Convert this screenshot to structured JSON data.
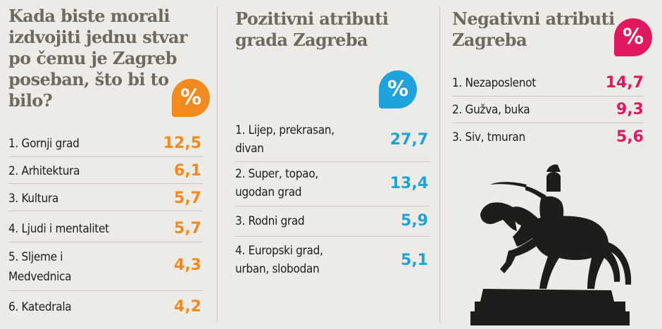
{
  "colors": {
    "orange": "#f38a1f",
    "blue": "#1ea3dc",
    "pink": "#e0185f",
    "title_grey": "#6e6a62"
  },
  "panels": [
    {
      "title_lines": [
        "Kada biste morali",
        "izdvojiti jednu stvar",
        "po čemu je Zagreb",
        "poseban, što bi to",
        "bilo?"
      ],
      "badge": "%",
      "rows": [
        {
          "label_lines": [
            "1. Gornji grad"
          ],
          "value": "12,5"
        },
        {
          "label_lines": [
            "2. Arhitektura"
          ],
          "value": "6,1"
        },
        {
          "label_lines": [
            "3. Kultura"
          ],
          "value": "5,7"
        },
        {
          "label_lines": [
            "4. Ljudi i mentalitet"
          ],
          "value": "5,7"
        },
        {
          "label_lines": [
            "5. Sljeme i",
            "Medvednica"
          ],
          "value": "4,3"
        },
        {
          "label_lines": [
            "6. Katedrala"
          ],
          "value": "4,2"
        }
      ]
    },
    {
      "title_lines": [
        "Pozitivni atributi",
        "grada Zagreba"
      ],
      "badge": "%",
      "rows": [
        {
          "label_lines": [
            "1. Lijep, prekrasan,",
            "divan"
          ],
          "value": "27,7"
        },
        {
          "label_lines": [
            "2. Super, topao,",
            "ugodan grad"
          ],
          "value": "13,4"
        },
        {
          "label_lines": [
            "3. Rodni grad"
          ],
          "value": "5,9"
        },
        {
          "label_lines": [
            "4. Europski grad,",
            "urban, slobodan"
          ],
          "value": "5,1"
        }
      ]
    },
    {
      "title_lines": [
        "Negativni atributi",
        "Zagreba"
      ],
      "badge": "%",
      "rows": [
        {
          "label_lines": [
            "1. Nezaposlenot"
          ],
          "value": "14,7"
        },
        {
          "label_lines": [
            "2. Gužva, buka"
          ],
          "value": "9,3"
        },
        {
          "label_lines": [
            "3. Siv, tmuran"
          ],
          "value": "5,6"
        }
      ]
    }
  ],
  "chart_data": [
    {
      "type": "table",
      "title": "Kada biste morali izdvojiti jednu stvar po čemu je Zagreb poseban, što bi to bilo?",
      "unit": "%",
      "categories": [
        "Gornji grad",
        "Arhitektura",
        "Kultura",
        "Ljudi i mentalitet",
        "Sljeme i Medvednica",
        "Katedrala"
      ],
      "values": [
        12.5,
        6.1,
        5.7,
        5.7,
        4.3,
        4.2
      ]
    },
    {
      "type": "table",
      "title": "Pozitivni atributi grada Zagreba",
      "unit": "%",
      "categories": [
        "Lijep, prekrasan, divan",
        "Super, topao, ugodan grad",
        "Rodni grad",
        "Europski grad, urban, slobodan"
      ],
      "values": [
        27.7,
        13.4,
        5.9,
        5.1
      ]
    },
    {
      "type": "table",
      "title": "Negativni atributi Zagreba",
      "unit": "%",
      "categories": [
        "Nezaposlenot",
        "Gužva, buka",
        "Siv, tmuran"
      ],
      "values": [
        14.7,
        9.3,
        5.6
      ]
    }
  ]
}
